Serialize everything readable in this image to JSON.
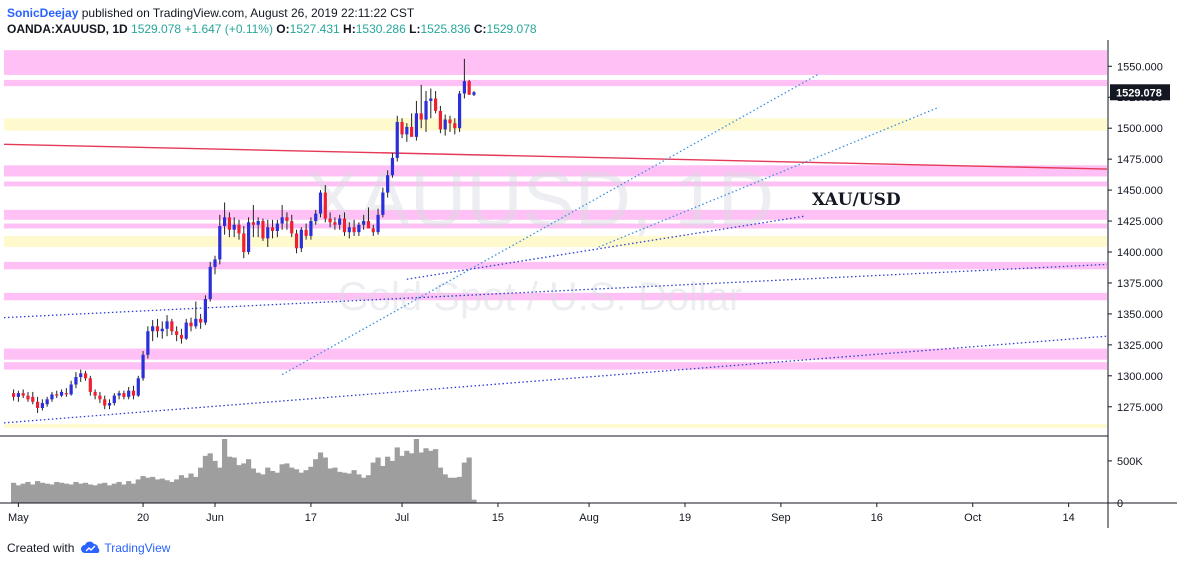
{
  "header": {
    "author": "SonicDeejay",
    "published_text": "published on TradingView.com, August 26, 2019 22:11:22 CST",
    "symbol": "OANDA:XAUUSD, 1D",
    "last": "1529.078",
    "change": "+1.647 (+0.11%)",
    "o_label": "O:",
    "o_value": "1527.431",
    "h_label": "H:",
    "h_value": "1530.286",
    "l_label": "L:",
    "l_value": "1525.836",
    "c_label": "C:",
    "c_value": "1529.078"
  },
  "footer": {
    "created_with": "Created with",
    "brand": "TradingView"
  },
  "colors": {
    "up": "#2a2fd8",
    "down": "#ef2030",
    "zone_pink": "#ff9ff0",
    "zone_yellow": "#fff9c8",
    "trendline_red": "#e53957",
    "dotted_blue": "#2b3fd0",
    "dotted_light": "#3d8fe0",
    "volume": "#9e9e9e"
  },
  "chart_data": {
    "type": "candlestick",
    "watermark": "XAUUSD, 1D",
    "watermark_sub": "Gold Spot / U.S. Dollar",
    "annotation": "XAU/USD",
    "last_price_label": "1529.078",
    "y_ticks": [
      "1550.000",
      "1525.000",
      "1500.000",
      "1475.000",
      "1450.000",
      "1425.000",
      "1400.000",
      "1375.000",
      "1350.000",
      "1325.000",
      "1300.000",
      "1275.000"
    ],
    "y_tick_values": [
      1550,
      1525,
      1500,
      1475,
      1450,
      1425,
      1400,
      1375,
      1350,
      1325,
      1300,
      1275
    ],
    "ylim": [
      1253,
      1568
    ],
    "volume_ticks": [
      "500K",
      "0"
    ],
    "volume_tick_values": [
      500000,
      0
    ],
    "volume_max": 760000,
    "x_ticks": [
      "May",
      "20",
      "Jun",
      "17",
      "Jul",
      "15",
      "Aug",
      "19",
      "Sep",
      "16",
      "Oct",
      "14"
    ],
    "x_tick_index": [
      1,
      27,
      42,
      62,
      81,
      101,
      120,
      140,
      160,
      180,
      200,
      220
    ],
    "x_range": [
      -2,
      228
    ],
    "zones": [
      {
        "from": 1543,
        "to": 1563,
        "color": "pink"
      },
      {
        "from": 1534,
        "to": 1539,
        "color": "pink"
      },
      {
        "from": 1498,
        "to": 1508,
        "color": "yellow"
      },
      {
        "from": 1461,
        "to": 1470,
        "color": "pink"
      },
      {
        "from": 1453,
        "to": 1457,
        "color": "pink"
      },
      {
        "from": 1426,
        "to": 1434,
        "color": "pink"
      },
      {
        "from": 1419,
        "to": 1423,
        "color": "pink"
      },
      {
        "from": 1404,
        "to": 1413,
        "color": "yellow"
      },
      {
        "from": 1386,
        "to": 1392,
        "color": "pink"
      },
      {
        "from": 1361,
        "to": 1367,
        "color": "pink"
      },
      {
        "from": 1313,
        "to": 1322,
        "color": "pink"
      },
      {
        "from": 1305,
        "to": 1311,
        "color": "pink"
      },
      {
        "from": 1258,
        "to": 1261,
        "color": "yellow"
      }
    ],
    "lines": [
      {
        "kind": "solid",
        "color": "red",
        "x1": -2,
        "y1": 1487,
        "x2": 228,
        "y2": 1467
      },
      {
        "kind": "dotted",
        "color": "blue",
        "x1": -2,
        "y1": 1262,
        "x2": 228,
        "y2": 1332
      },
      {
        "kind": "dotted",
        "color": "blue",
        "x1": -2,
        "y1": 1347,
        "x2": 228,
        "y2": 1390
      },
      {
        "kind": "dotted",
        "color": "blue",
        "x1": 82,
        "y1": 1378,
        "x2": 165,
        "y2": 1429
      },
      {
        "kind": "dotted",
        "color": "light",
        "x1": 56,
        "y1": 1301,
        "x2": 168,
        "y2": 1544
      },
      {
        "kind": "dotted",
        "color": "light",
        "x1": 122,
        "y1": 1404,
        "x2": 193,
        "y2": 1517
      }
    ],
    "candles": [
      [
        0,
        1286,
        1289,
        1280,
        1283
      ],
      [
        1,
        1283,
        1288,
        1279,
        1286
      ],
      [
        2,
        1286,
        1289,
        1282,
        1284
      ],
      [
        3,
        1284,
        1287,
        1279,
        1281
      ],
      [
        4,
        1283,
        1287,
        1277,
        1279
      ],
      [
        5,
        1279,
        1283,
        1270,
        1274
      ],
      [
        6,
        1274,
        1281,
        1272,
        1278
      ],
      [
        7,
        1277,
        1283,
        1275,
        1281
      ],
      [
        8,
        1281,
        1287,
        1279,
        1285
      ],
      [
        9,
        1285,
        1288,
        1282,
        1284
      ],
      [
        10,
        1284,
        1289,
        1283,
        1287
      ],
      [
        11,
        1286,
        1290,
        1283,
        1285
      ],
      [
        12,
        1285,
        1296,
        1284,
        1293
      ],
      [
        13,
        1293,
        1303,
        1290,
        1299
      ],
      [
        14,
        1299,
        1305,
        1295,
        1302
      ],
      [
        15,
        1302,
        1304,
        1296,
        1298
      ],
      [
        16,
        1298,
        1300,
        1284,
        1287
      ],
      [
        17,
        1287,
        1289,
        1281,
        1284
      ],
      [
        18,
        1284,
        1287,
        1278,
        1281
      ],
      [
        19,
        1281,
        1284,
        1273,
        1276
      ],
      [
        20,
        1276,
        1281,
        1273,
        1278
      ],
      [
        21,
        1278,
        1286,
        1276,
        1284
      ],
      [
        22,
        1284,
        1288,
        1281,
        1286
      ],
      [
        23,
        1286,
        1288,
        1281,
        1283
      ],
      [
        24,
        1283,
        1291,
        1281,
        1288
      ],
      [
        25,
        1288,
        1292,
        1281,
        1284
      ],
      [
        26,
        1284,
        1300,
        1283,
        1298
      ],
      [
        27,
        1298,
        1320,
        1296,
        1317
      ],
      [
        28,
        1317,
        1340,
        1314,
        1336
      ],
      [
        29,
        1336,
        1345,
        1328,
        1340
      ],
      [
        30,
        1340,
        1346,
        1331,
        1336
      ],
      [
        31,
        1336,
        1344,
        1330,
        1338
      ],
      [
        32,
        1338,
        1349,
        1332,
        1344
      ],
      [
        33,
        1344,
        1346,
        1333,
        1336
      ],
      [
        34,
        1336,
        1340,
        1328,
        1333
      ],
      [
        35,
        1333,
        1338,
        1326,
        1330
      ],
      [
        36,
        1330,
        1346,
        1329,
        1343
      ],
      [
        37,
        1343,
        1347,
        1336,
        1340
      ],
      [
        38,
        1340,
        1360,
        1338,
        1346
      ],
      [
        39,
        1346,
        1350,
        1338,
        1343
      ],
      [
        40,
        1343,
        1365,
        1341,
        1362
      ],
      [
        41,
        1362,
        1392,
        1360,
        1388
      ],
      [
        42,
        1388,
        1397,
        1382,
        1394
      ],
      [
        43,
        1394,
        1430,
        1390,
        1421
      ],
      [
        44,
        1421,
        1440,
        1414,
        1428
      ],
      [
        45,
        1428,
        1432,
        1412,
        1418
      ],
      [
        46,
        1418,
        1428,
        1412,
        1422
      ],
      [
        47,
        1422,
        1426,
        1410,
        1415
      ],
      [
        48,
        1415,
        1421,
        1395,
        1400
      ],
      [
        49,
        1400,
        1428,
        1398,
        1424
      ],
      [
        50,
        1424,
        1438,
        1412,
        1422
      ],
      [
        51,
        1422,
        1428,
        1412,
        1425
      ],
      [
        52,
        1425,
        1427,
        1409,
        1411
      ],
      [
        53,
        1411,
        1426,
        1404,
        1420
      ],
      [
        54,
        1420,
        1426,
        1411,
        1417
      ],
      [
        55,
        1417,
        1426,
        1412,
        1423
      ],
      [
        56,
        1423,
        1438,
        1418,
        1428
      ],
      [
        57,
        1428,
        1432,
        1418,
        1425
      ],
      [
        58,
        1425,
        1430,
        1412,
        1415
      ],
      [
        59,
        1415,
        1418,
        1399,
        1403
      ],
      [
        60,
        1403,
        1420,
        1400,
        1418
      ],
      [
        61,
        1418,
        1423,
        1410,
        1413
      ],
      [
        62,
        1413,
        1428,
        1410,
        1425
      ],
      [
        63,
        1425,
        1434,
        1422,
        1431
      ],
      [
        64,
        1431,
        1450,
        1428,
        1448
      ],
      [
        65,
        1448,
        1454,
        1424,
        1427
      ],
      [
        66,
        1427,
        1432,
        1420,
        1424
      ],
      [
        67,
        1424,
        1428,
        1418,
        1422
      ],
      [
        68,
        1422,
        1430,
        1418,
        1427
      ],
      [
        69,
        1427,
        1432,
        1413,
        1416
      ],
      [
        70,
        1416,
        1424,
        1411,
        1420
      ],
      [
        71,
        1420,
        1426,
        1413,
        1416
      ],
      [
        72,
        1416,
        1424,
        1413,
        1422
      ],
      [
        73,
        1422,
        1430,
        1418,
        1425
      ],
      [
        74,
        1425,
        1436,
        1420,
        1419
      ],
      [
        75,
        1419,
        1422,
        1413,
        1416
      ],
      [
        76,
        1416,
        1435,
        1414,
        1430
      ],
      [
        77,
        1430,
        1452,
        1428,
        1448
      ],
      [
        78,
        1448,
        1466,
        1444,
        1462
      ],
      [
        79,
        1462,
        1480,
        1460,
        1476
      ],
      [
        80,
        1476,
        1510,
        1473,
        1505
      ],
      [
        81,
        1505,
        1508,
        1492,
        1495
      ],
      [
        82,
        1495,
        1504,
        1489,
        1501
      ],
      [
        83,
        1501,
        1512,
        1496,
        1493
      ],
      [
        84,
        1493,
        1522,
        1490,
        1512
      ],
      [
        85,
        1512,
        1535,
        1500,
        1507
      ],
      [
        86,
        1507,
        1530,
        1497,
        1522
      ],
      [
        87,
        1522,
        1532,
        1508,
        1524
      ],
      [
        88,
        1524,
        1530,
        1512,
        1514
      ],
      [
        89,
        1514,
        1518,
        1496,
        1499
      ],
      [
        90,
        1499,
        1511,
        1494,
        1507
      ],
      [
        91,
        1507,
        1510,
        1497,
        1504
      ],
      [
        92,
        1504,
        1508,
        1495,
        1500
      ],
      [
        93,
        1500,
        1530,
        1497,
        1528
      ],
      [
        94,
        1528,
        1556,
        1524,
        1538
      ],
      [
        95,
        1538,
        1539,
        1527,
        1527
      ],
      [
        96,
        1527,
        1530,
        1526,
        1529
      ]
    ],
    "volumes": [
      240000,
      210000,
      230000,
      250000,
      220000,
      260000,
      240000,
      230000,
      220000,
      250000,
      240000,
      230000,
      220000,
      250000,
      230000,
      240000,
      220000,
      210000,
      230000,
      240000,
      210000,
      230000,
      250000,
      220000,
      260000,
      230000,
      280000,
      320000,
      300000,
      310000,
      280000,
      290000,
      270000,
      250000,
      280000,
      330000,
      300000,
      350000,
      310000,
      420000,
      560000,
      590000,
      500000,
      420000,
      760000,
      550000,
      540000,
      450000,
      470000,
      520000,
      410000,
      360000,
      340000,
      420000,
      380000,
      360000,
      460000,
      470000,
      420000,
      400000,
      360000,
      390000,
      430000,
      520000,
      600000,
      540000,
      410000,
      420000,
      370000,
      360000,
      350000,
      390000,
      340000,
      300000,
      330000,
      480000,
      540000,
      440000,
      550000,
      500000,
      660000,
      560000,
      620000,
      590000,
      760000,
      600000,
      650000,
      620000,
      640000,
      420000,
      340000,
      300000,
      300000,
      310000,
      480000,
      540000,
      40000
    ]
  }
}
